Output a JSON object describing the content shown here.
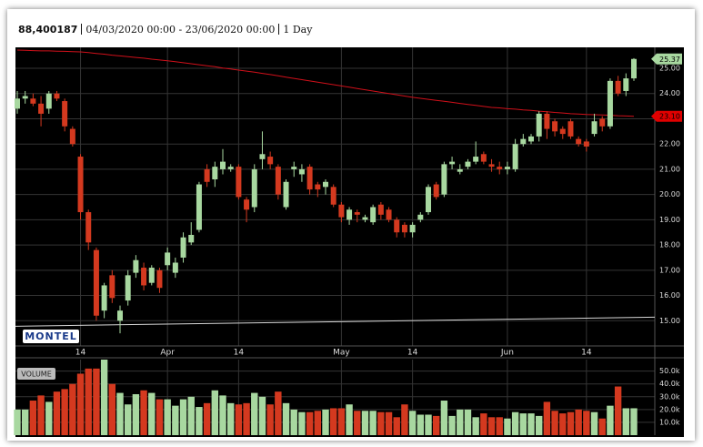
{
  "header": {
    "instrument": "88,400187",
    "range": "04/03/2020 00:00 - 23/06/2020 00:00",
    "interval": "1 Day"
  },
  "chart_data": {
    "type": "candlestick",
    "logo": "MONTEL",
    "volume_label": "VOLUME",
    "grid": true,
    "up_color": "#a8d8a0",
    "down_color": "#d4391f",
    "categories": [
      null,
      null,
      null,
      null,
      null,
      null,
      null,
      null,
      "14",
      null,
      null,
      null,
      null,
      null,
      null,
      null,
      null,
      null,
      null,
      "Apr",
      null,
      null,
      null,
      null,
      null,
      null,
      null,
      null,
      "14",
      null,
      null,
      null,
      null,
      null,
      null,
      null,
      null,
      null,
      null,
      null,
      null,
      "May",
      null,
      null,
      null,
      null,
      null,
      null,
      null,
      null,
      "14",
      null,
      null,
      null,
      null,
      null,
      null,
      null,
      null,
      null,
      null,
      null,
      "Jun",
      null,
      null,
      null,
      null,
      null,
      null,
      null,
      null,
      null,
      "14",
      null,
      null,
      null,
      null,
      null,
      null
    ],
    "open": [
      23.4,
      23.8,
      23.8,
      23.6,
      23.4,
      24.0,
      23.7,
      22.6,
      21.5,
      19.3,
      17.8,
      15.4,
      16.8,
      15.0,
      15.8,
      16.9,
      17.1,
      16.5,
      17.0,
      17.2,
      16.9,
      17.5,
      18.1,
      18.6,
      21.0,
      20.6,
      21.0,
      21.0,
      21.1,
      19.8,
      19.5,
      21.4,
      21.5,
      21.1,
      19.5,
      21.0,
      20.8,
      21.1,
      20.4,
      20.3,
      20.3,
      19.6,
      19.0,
      19.3,
      19.0,
      18.9,
      19.6,
      19.4,
      19.0,
      18.8,
      18.5,
      19.0,
      19.3,
      20.4,
      20.0,
      21.2,
      20.9,
      21.1,
      21.3,
      21.6,
      21.2,
      21.1,
      21.0,
      21.0,
      22.0,
      22.1,
      22.3,
      23.2,
      22.9,
      22.6,
      22.9,
      22.2,
      22.1,
      22.4,
      23.0,
      22.7,
      24.5,
      24.1,
      24.6
    ],
    "high": [
      24.1,
      24.1,
      24.0,
      23.9,
      24.1,
      24.1,
      23.8,
      22.7,
      21.6,
      19.4,
      17.9,
      16.5,
      17.0,
      15.6,
      17.0,
      17.6,
      17.3,
      17.2,
      17.1,
      17.9,
      17.5,
      18.5,
      18.9,
      20.5,
      21.2,
      21.3,
      21.8,
      21.2,
      21.2,
      19.9,
      21.2,
      22.5,
      21.7,
      21.2,
      20.6,
      21.3,
      21.2,
      21.2,
      20.5,
      20.6,
      20.4,
      19.7,
      19.5,
      19.4,
      19.2,
      19.6,
      19.7,
      19.5,
      19.1,
      18.9,
      18.9,
      19.3,
      20.4,
      20.5,
      21.3,
      21.5,
      21.2,
      21.4,
      22.1,
      21.7,
      21.4,
      21.3,
      21.3,
      22.2,
      22.4,
      22.4,
      23.3,
      23.3,
      23.0,
      22.7,
      23.0,
      22.3,
      22.2,
      23.2,
      23.1,
      24.6,
      24.7,
      24.8,
      25.4
    ],
    "low": [
      23.2,
      23.6,
      23.5,
      22.7,
      23.2,
      23.7,
      22.5,
      21.9,
      19.0,
      17.8,
      15.0,
      15.1,
      15.7,
      14.5,
      15.6,
      16.7,
      16.2,
      16.4,
      16.1,
      17.0,
      16.7,
      17.3,
      18.0,
      18.5,
      20.3,
      20.3,
      20.8,
      20.9,
      19.8,
      18.9,
      19.3,
      21.0,
      21.0,
      19.8,
      19.4,
      20.7,
      20.5,
      20.0,
      19.9,
      20.0,
      19.5,
      18.9,
      18.8,
      18.9,
      18.9,
      18.8,
      19.0,
      18.9,
      18.3,
      18.3,
      18.3,
      18.9,
      19.2,
      19.8,
      19.9,
      21.0,
      20.8,
      21.0,
      21.2,
      21.2,
      20.9,
      20.8,
      20.8,
      20.9,
      21.9,
      22.0,
      22.1,
      22.2,
      22.3,
      22.2,
      22.2,
      21.9,
      21.7,
      22.3,
      22.5,
      22.6,
      23.9,
      23.9,
      24.5
    ],
    "close": [
      23.8,
      23.9,
      23.6,
      23.2,
      24.0,
      23.8,
      22.7,
      22.0,
      19.3,
      18.1,
      15.2,
      16.4,
      15.9,
      15.4,
      16.8,
      17.4,
      16.4,
      17.1,
      16.3,
      17.7,
      17.3,
      18.3,
      18.4,
      20.4,
      20.5,
      21.1,
      21.3,
      21.1,
      19.9,
      19.4,
      21.0,
      21.6,
      21.2,
      20.0,
      20.5,
      21.1,
      21.0,
      20.2,
      20.2,
      20.5,
      19.6,
      19.1,
      19.4,
      19.2,
      19.1,
      19.5,
      19.2,
      19.0,
      18.5,
      18.5,
      18.8,
      19.2,
      20.3,
      19.9,
      21.2,
      21.3,
      21.0,
      21.3,
      21.5,
      21.3,
      21.1,
      21.0,
      21.1,
      22.0,
      22.2,
      22.3,
      23.2,
      22.6,
      22.5,
      22.4,
      22.3,
      22.0,
      21.9,
      22.9,
      22.7,
      24.5,
      24.0,
      24.6,
      25.37
    ],
    "ma": {
      "color": "#d0101a",
      "values": [
        25.72,
        25.71,
        25.7,
        25.69,
        25.69,
        25.68,
        25.67,
        25.66,
        25.65,
        25.62,
        25.59,
        25.56,
        25.52,
        25.49,
        25.46,
        25.43,
        25.4,
        25.36,
        25.33,
        25.3,
        25.26,
        25.22,
        25.18,
        25.14,
        25.1,
        25.06,
        25.01,
        24.97,
        24.93,
        24.89,
        24.85,
        24.8,
        24.75,
        24.7,
        24.65,
        24.6,
        24.55,
        24.5,
        24.45,
        24.4,
        24.35,
        24.3,
        24.25,
        24.2,
        24.15,
        24.1,
        24.05,
        24.0,
        23.95,
        23.9,
        23.85,
        23.81,
        23.77,
        23.73,
        23.69,
        23.65,
        23.61,
        23.57,
        23.53,
        23.49,
        23.45,
        23.43,
        23.4,
        23.38,
        23.35,
        23.33,
        23.3,
        23.28,
        23.25,
        23.23,
        23.2,
        23.19,
        23.17,
        23.16,
        23.15,
        23.14,
        23.12,
        23.11,
        23.1
      ]
    },
    "trendline": {
      "color": "#d8d8d8",
      "values": [
        14.78,
        15.14
      ]
    },
    "price_tags": [
      {
        "value": 25.37,
        "label": "25.37",
        "color": "#a8d8a0"
      },
      {
        "value": 23.1,
        "label": "23.10",
        "color": "#e00000"
      }
    ],
    "ylim": [
      14,
      25.83
    ],
    "yticks": [
      {
        "value": 15,
        "label": "15.00"
      },
      {
        "value": 16,
        "label": "16.00"
      },
      {
        "value": 17,
        "label": "17.00"
      },
      {
        "value": 18,
        "label": "18.00"
      },
      {
        "value": 19,
        "label": "19.00"
      },
      {
        "value": 20,
        "label": "20.00"
      },
      {
        "value": 21,
        "label": "21.00"
      },
      {
        "value": 22,
        "label": "22.00"
      },
      {
        "value": 23,
        "label": "23.00"
      },
      {
        "value": 24,
        "label": "24.00"
      },
      {
        "value": 25,
        "label": "25.00"
      }
    ],
    "volume": {
      "values": [
        20000,
        20000,
        27000,
        31000,
        26000,
        34000,
        36000,
        40000,
        48000,
        52000,
        52000,
        59000,
        40000,
        33000,
        24000,
        32000,
        35000,
        33000,
        28000,
        28000,
        23000,
        28000,
        30000,
        22000,
        25000,
        35000,
        31000,
        25000,
        24000,
        25000,
        33000,
        30000,
        24000,
        34000,
        25000,
        20000,
        18000,
        18000,
        19000,
        20000,
        21000,
        21000,
        24000,
        19000,
        19000,
        19000,
        18000,
        18000,
        14000,
        24000,
        19000,
        16000,
        16000,
        15000,
        27000,
        15000,
        20000,
        20000,
        14000,
        17000,
        14000,
        14000,
        13000,
        18000,
        17000,
        17000,
        15000,
        26000,
        19000,
        17000,
        18000,
        20000,
        19000,
        18000,
        13000,
        23000,
        38000,
        21000,
        21000
      ],
      "ylim": [
        0,
        59000
      ],
      "yticks": [
        {
          "value": 10000,
          "label": "10.0k"
        },
        {
          "value": 20000,
          "label": "20.0k"
        },
        {
          "value": 30000,
          "label": "30.0k"
        },
        {
          "value": 40000,
          "label": "40.0k"
        },
        {
          "value": 50000,
          "label": "50.0k"
        }
      ]
    }
  }
}
